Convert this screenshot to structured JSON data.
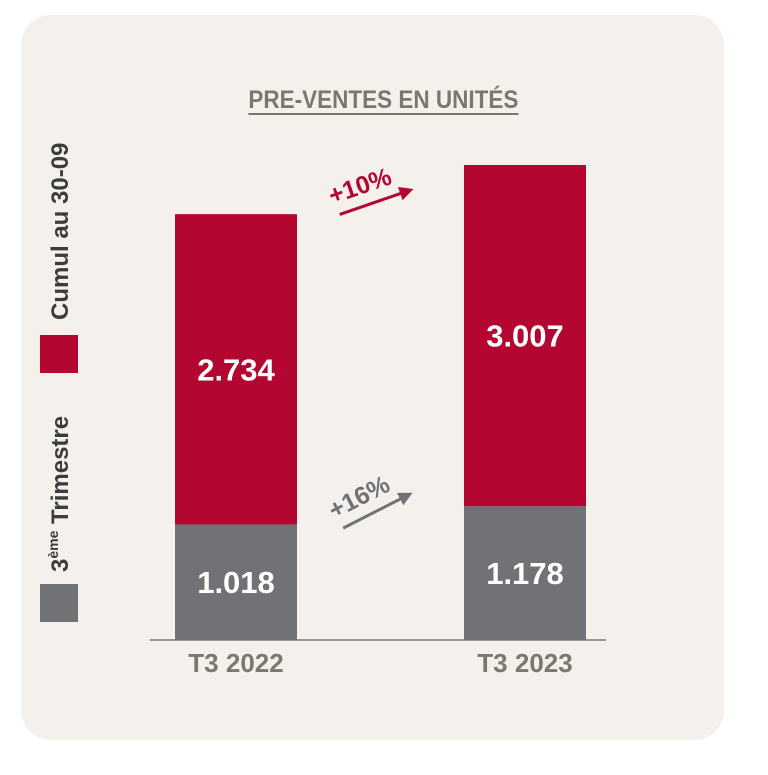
{
  "colors": {
    "background": "#f4f0eb",
    "cumul": "#b30732",
    "trimestre": "#717276",
    "title": "#7b786f",
    "axis_label": "#7b786f",
    "growth_cumul": "#b30732",
    "growth_trimestre": "#717276",
    "bar_label": "#ffffff"
  },
  "chart_data": {
    "type": "bar",
    "stacked": true,
    "title": "PRE-VENTES EN UNITÉS",
    "categories": [
      "T3 2022",
      "T3 2023"
    ],
    "series": [
      {
        "name": "3ème Trimestre",
        "values": [
          1018,
          1178
        ],
        "labels": [
          "1.018",
          "1.178"
        ]
      },
      {
        "name": "Cumul au 30-09",
        "values": [
          2734,
          3007
        ],
        "labels": [
          "2.734",
          "3.007"
        ]
      }
    ],
    "growth": [
      {
        "series": "Cumul au 30-09",
        "label": "+10%"
      },
      {
        "series": "3ème Trimestre",
        "label": "+16%"
      }
    ],
    "legend": [
      {
        "base": "3",
        "superscript": "ème",
        "rest": " Trimestre"
      },
      {
        "base": "Cumul au 30-09",
        "superscript": "",
        "rest": ""
      }
    ],
    "legend_position": "left, vertical",
    "grid": false
  }
}
